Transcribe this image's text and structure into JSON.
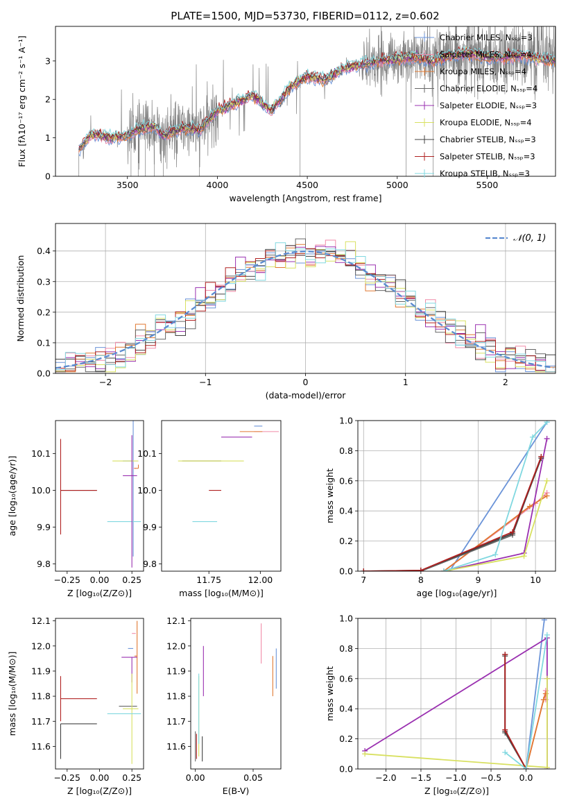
{
  "figure_title": "PLATE=1500, MJD=53730, FIBERID=0112, z=0.602",
  "series_colors": {
    "Chabrier MILES": "#6a93d8",
    "Salpeter MILES": "#f08aa8",
    "Kroupa MILES": "#e07830",
    "Chabrier ELODIE": "#666666",
    "Salpeter ELODIE": "#9a30b0",
    "Kroupa ELODIE": "#d8e060",
    "Chabrier STELIB": "#404040",
    "Salpeter STELIB": "#b02020",
    "Kroupa STELIB": "#80d8e0"
  },
  "chart_data": [
    {
      "id": "spectrum",
      "type": "line",
      "title": "PLATE=1500, MJD=53730, FIBERID=0112, z=0.602",
      "xlabel": "wavelength [Angstrom, rest frame]",
      "ylabel": "Flux [fλ10⁻¹⁷ erg cm⁻² s⁻¹ A⁻¹]",
      "xlim": [
        3100,
        5880
      ],
      "ylim": [
        0,
        3.9
      ],
      "xticks": [
        3500,
        4000,
        4500,
        5000,
        5500
      ],
      "yticks": [
        0,
        1,
        2,
        3
      ],
      "data_color": "#808080",
      "data_range": [
        3230,
        5880
      ],
      "model_anchors": {
        "x": [
          3230,
          3300,
          3400,
          3500,
          3550,
          3650,
          3700,
          3800,
          3900,
          4000,
          4100,
          4200,
          4300,
          4400,
          4500,
          4600,
          4700,
          4800,
          4900,
          5000,
          5100,
          5200,
          5300,
          5400,
          5500,
          5600,
          5700,
          5800,
          5880
        ],
        "y": [
          0.7,
          1.1,
          1.0,
          1.05,
          1.2,
          1.3,
          1.05,
          1.25,
          1.2,
          1.7,
          1.9,
          2.1,
          1.7,
          2.3,
          2.6,
          2.5,
          2.8,
          2.9,
          3.0,
          3.05,
          3.1,
          3.0,
          3.15,
          3.2,
          3.1,
          3.1,
          3.15,
          3.05,
          3.0
        ]
      },
      "legend_placement": "right",
      "legend": [
        "Chabrier MILES, Nₛₛₚ=3",
        "Salpeter MILES, Nₛₛₚ=4",
        "Kroupa MILES, Nₛₛₚ=4",
        "Chabrier ELODIE, Nₛₛₚ=4",
        "Salpeter ELODIE, Nₛₛₚ=3",
        "Kroupa ELODIE, Nₛₛₚ=4",
        "Chabrier STELIB, Nₛₛₚ=3",
        "Salpeter STELIB, Nₛₛₚ=3",
        "Kroupa STELIB, Nₛₛₚ=3"
      ],
      "grid": false
    },
    {
      "id": "residuals",
      "type": "histogram",
      "xlabel": "(data-model)/error",
      "ylabel": "Normed distribution",
      "xlim": [
        -2.5,
        2.5
      ],
      "ylim": [
        0,
        0.49
      ],
      "xticks": [
        -2,
        -1,
        0,
        1,
        2
      ],
      "yticks": [
        0.0,
        0.1,
        0.2,
        0.3,
        0.4
      ],
      "bin_width": 0.1,
      "gaussian_label": "𝒩(0, 1)",
      "gaussian_color": "#5b8bd0",
      "legend_placement": "top-right",
      "grid": true
    },
    {
      "id": "age_vs_Z",
      "type": "errorbar",
      "xlabel": "Z [log₁₀(Z/Z⊙)]",
      "ylabel": "age  [log₁₀(age/yr)]",
      "xlim": [
        -0.34,
        0.34
      ],
      "ylim": [
        9.78,
        10.19
      ],
      "xticks": [
        -0.25,
        0.0,
        0.25
      ],
      "yticks": [
        9.8,
        9.9,
        10.0,
        10.1
      ],
      "points": [
        {
          "s": "Chabrier MILES",
          "x": 0.26,
          "y": 10.08,
          "xerr": [
            0.08,
            0.0
          ],
          "yerr": [
            0.26,
            0.11
          ]
        },
        {
          "s": "Salpeter MILES",
          "x": 0.28,
          "y": 10.06,
          "xerr": [
            0.02,
            0.0
          ],
          "yerr": [
            0.0,
            0.0
          ]
        },
        {
          "s": "Kroupa MILES",
          "x": 0.3,
          "y": 10.06,
          "xerr": [
            0.03,
            0.0
          ],
          "yerr": [
            0.0,
            0.01
          ]
        },
        {
          "s": "Chabrier ELODIE",
          "x": 0.25,
          "y": 10.1,
          "xerr": [
            0.0,
            0.0
          ],
          "yerr": [
            0.0,
            0.0
          ]
        },
        {
          "s": "Salpeter ELODIE",
          "x": 0.25,
          "y": 10.04,
          "xerr": [
            0.07,
            0.04
          ],
          "yerr": [
            0.0,
            0.0
          ]
        },
        {
          "s": "Kroupa ELODIE",
          "x": 0.25,
          "y": 10.08,
          "xerr": [
            0.15,
            0.05
          ],
          "yerr": [
            0.0,
            0.0
          ]
        },
        {
          "s": "Chabrier STELIB",
          "x": -0.3,
          "y": 10.0,
          "xerr": [
            0.0,
            0.28
          ],
          "yerr": [
            0.0,
            0.0
          ]
        },
        {
          "s": "Salpeter STELIB",
          "x": -0.3,
          "y": 10.0,
          "xerr": [
            0.0,
            0.28
          ],
          "yerr": [
            0.12,
            0.14
          ]
        },
        {
          "s": "Kroupa STELIB",
          "x": 0.26,
          "y": 9.915,
          "xerr": [
            0.2,
            0.06
          ],
          "yerr": [
            0.0,
            0.0
          ]
        },
        {
          "s": "Salpeter ELODIE",
          "x": 0.25,
          "y": 10.1,
          "xerr": [
            0.0,
            0.0
          ],
          "yerr": [
            0.31,
            0.05
          ]
        }
      ]
    },
    {
      "id": "age_vs_mass",
      "type": "errorbar",
      "xlabel": "mass [log₁₀(M/M⊙)]",
      "ylabel": "",
      "xlim": [
        11.52,
        12.1
      ],
      "ylim": [
        9.78,
        10.19
      ],
      "xticks": [
        11.75,
        12.0
      ],
      "yticks": [
        9.8,
        9.9,
        10.0,
        10.1
      ],
      "points": [
        {
          "s": "Chabrier MILES",
          "x": 11.99,
          "y": 10.175,
          "xerr": [
            0.02,
            0.02
          ],
          "yerr": [
            0.0,
            0.0
          ]
        },
        {
          "s": "Salpeter MILES",
          "x": 12.05,
          "y": 10.16,
          "xerr": [
            0.08,
            0.04
          ],
          "yerr": [
            0.0,
            0.0
          ]
        },
        {
          "s": "Kroupa MILES",
          "x": 11.96,
          "y": 10.16,
          "xerr": [
            0.06,
            0.05
          ],
          "yerr": [
            0.0,
            0.0
          ]
        },
        {
          "s": "Chabrier ELODIE",
          "x": 11.76,
          "y": 10.08,
          "xerr": [
            0.14,
            0.05
          ],
          "yerr": [
            0.0,
            0.0
          ]
        },
        {
          "s": "Salpeter ELODIE",
          "x": 11.96,
          "y": 10.145,
          "xerr": [
            0.15,
            0.0
          ],
          "yerr": [
            0.0,
            0.0
          ]
        },
        {
          "s": "Kroupa ELODIE",
          "x": 11.8,
          "y": 10.08,
          "xerr": [
            0.2,
            0.12
          ],
          "yerr": [
            0.0,
            0.0
          ]
        },
        {
          "s": "Chabrier STELIB",
          "x": 11.69,
          "y": 10.0,
          "xerr": [
            0.0,
            0.0
          ],
          "yerr": [
            0.0,
            0.0
          ]
        },
        {
          "s": "Salpeter STELIB",
          "x": 11.79,
          "y": 10.0,
          "xerr": [
            0.04,
            0.02
          ],
          "yerr": [
            0.0,
            0.0
          ]
        },
        {
          "s": "Kroupa STELIB",
          "x": 11.73,
          "y": 9.915,
          "xerr": [
            0.06,
            0.06
          ],
          "yerr": [
            0.0,
            0.0
          ]
        }
      ]
    },
    {
      "id": "massweight_vs_age",
      "type": "line",
      "xlabel": "age  [log₁₀(age/yr)]",
      "ylabel": "mass weight",
      "xlim": [
        6.9,
        10.35
      ],
      "ylim": [
        0,
        1.0
      ],
      "xticks": [
        7,
        8,
        9,
        10
      ],
      "yticks": [
        0.0,
        0.2,
        0.4,
        0.6,
        0.8,
        1.0
      ],
      "grid": true,
      "series": [
        {
          "s": "Chabrier MILES",
          "x": [
            8.5,
            10.2
          ],
          "y": [
            0.0,
            0.99
          ]
        },
        {
          "s": "Salpeter MILES",
          "x": [
            8.4,
            10.0,
            10.2
          ],
          "y": [
            0.0,
            0.45,
            0.52
          ]
        },
        {
          "s": "Kroupa MILES",
          "x": [
            8.4,
            9.9,
            10.2
          ],
          "y": [
            0.0,
            0.43,
            0.5
          ]
        },
        {
          "s": "Chabrier ELODIE",
          "x": [
            8.0,
            9.6,
            10.1
          ],
          "y": [
            0.0,
            0.24,
            0.76
          ]
        },
        {
          "s": "Salpeter ELODIE",
          "x": [
            8.4,
            9.8,
            10.2
          ],
          "y": [
            0.0,
            0.12,
            0.88
          ]
        },
        {
          "s": "Kroupa ELODIE",
          "x": [
            8.4,
            9.8,
            10.2
          ],
          "y": [
            0.0,
            0.1,
            0.6
          ]
        },
        {
          "s": "Chabrier STELIB",
          "x": [
            7.0,
            8.0,
            9.6,
            10.1
          ],
          "y": [
            0.0,
            0.005,
            0.25,
            0.75
          ]
        },
        {
          "s": "Salpeter STELIB",
          "x": [
            7.0,
            8.0,
            9.6,
            10.1
          ],
          "y": [
            0.0,
            0.005,
            0.26,
            0.76
          ]
        },
        {
          "s": "Kroupa STELIB",
          "x": [
            8.4,
            9.3,
            9.95,
            10.2
          ],
          "y": [
            0.0,
            0.11,
            0.89,
            0.99
          ]
        }
      ]
    },
    {
      "id": "mass_vs_Z",
      "type": "errorbar",
      "xlabel": "Z [log₁₀(Z/Z⊙)]",
      "ylabel": "mass [log₁₀(M/M⊙)]",
      "xlim": [
        -0.34,
        0.34
      ],
      "ylim": [
        11.51,
        12.11
      ],
      "xticks": [
        -0.25,
        0.0,
        0.25
      ],
      "yticks": [
        11.6,
        11.7,
        11.8,
        11.9,
        12.0,
        12.1
      ],
      "points": [
        {
          "s": "Chabrier MILES",
          "x": 0.26,
          "y": 11.99,
          "xerr": [
            0.04,
            0.0
          ],
          "yerr": [
            0.0,
            0.0
          ]
        },
        {
          "s": "Salpeter MILES",
          "x": 0.28,
          "y": 12.05,
          "xerr": [
            0.03,
            0.0
          ],
          "yerr": [
            0.0,
            0.0
          ]
        },
        {
          "s": "Kroupa MILES",
          "x": 0.29,
          "y": 11.96,
          "xerr": [
            0.02,
            0.0
          ],
          "yerr": [
            0.15,
            0.14
          ]
        },
        {
          "s": "Chabrier ELODIE",
          "x": 0.25,
          "y": 11.76,
          "xerr": [
            0.1,
            0.04
          ],
          "yerr": [
            0.0,
            0.0
          ]
        },
        {
          "s": "Salpeter ELODIE",
          "x": 0.25,
          "y": 11.955,
          "xerr": [
            0.08,
            0.04
          ],
          "yerr": [
            0.1,
            0.0
          ]
        },
        {
          "s": "Kroupa ELODIE",
          "x": 0.25,
          "y": 11.75,
          "xerr": [
            0.07,
            0.05
          ],
          "yerr": [
            0.22,
            0.14
          ]
        },
        {
          "s": "Chabrier STELIB",
          "x": -0.3,
          "y": 11.69,
          "xerr": [
            0.0,
            0.28
          ],
          "yerr": [
            0.14,
            0.0
          ]
        },
        {
          "s": "Salpeter STELIB",
          "x": -0.3,
          "y": 11.79,
          "xerr": [
            0.0,
            0.28
          ],
          "yerr": [
            0.09,
            0.09
          ]
        },
        {
          "s": "Kroupa STELIB",
          "x": 0.26,
          "y": 11.73,
          "xerr": [
            0.2,
            0.06
          ],
          "yerr": [
            0.0,
            0.0
          ]
        }
      ]
    },
    {
      "id": "mass_vs_EBV",
      "type": "errorbar",
      "xlabel": "E(B-V)",
      "ylabel": "",
      "xlim": [
        -0.004,
        0.074
      ],
      "ylim": [
        11.51,
        12.11
      ],
      "xticks": [
        0.0,
        0.05
      ],
      "yticks": [
        11.6,
        11.7,
        11.8,
        11.9,
        12.0,
        12.1
      ],
      "points": [
        {
          "s": "Chabrier MILES",
          "x": 0.07,
          "y": 11.91,
          "xerr": [
            0.0,
            0.0
          ],
          "yerr": [
            0.08,
            0.08
          ]
        },
        {
          "s": "Salpeter MILES",
          "x": 0.057,
          "y": 12.01,
          "xerr": [
            0.0,
            0.0
          ],
          "yerr": [
            0.08,
            0.08
          ]
        },
        {
          "s": "Kroupa MILES",
          "x": 0.067,
          "y": 11.88,
          "xerr": [
            0.0,
            0.0
          ],
          "yerr": [
            0.08,
            0.08
          ]
        },
        {
          "s": "Chabrier ELODIE",
          "x": 0.0,
          "y": 11.6,
          "xerr": [
            0.0,
            0.0
          ],
          "yerr": [
            0.06,
            0.06
          ]
        },
        {
          "s": "Salpeter ELODIE",
          "x": 0.007,
          "y": 11.9,
          "xerr": [
            0.0,
            0.0
          ],
          "yerr": [
            0.1,
            0.1
          ]
        },
        {
          "s": "Kroupa ELODIE",
          "x": 0.003,
          "y": 11.72,
          "xerr": [
            0.0,
            0.0
          ],
          "yerr": [
            0.16,
            0.16
          ]
        },
        {
          "s": "Chabrier STELIB",
          "x": 0.006,
          "y": 11.59,
          "xerr": [
            0.0,
            0.0
          ],
          "yerr": [
            0.05,
            0.05
          ]
        },
        {
          "s": "Salpeter STELIB",
          "x": 0.001,
          "y": 11.6,
          "xerr": [
            0.0,
            0.0
          ],
          "yerr": [
            0.05,
            0.05
          ]
        },
        {
          "s": "Kroupa STELIB",
          "x": 0.003,
          "y": 11.75,
          "xerr": [
            0.0,
            0.0
          ],
          "yerr": [
            0.14,
            0.14
          ]
        }
      ]
    },
    {
      "id": "massweight_vs_Z",
      "type": "line",
      "xlabel": "Z [log₁₀(Z/Z⊙)]",
      "ylabel": "mass weight",
      "xlim": [
        -2.4,
        0.42
      ],
      "ylim": [
        0,
        1.0
      ],
      "xticks": [
        -2.0,
        -1.5,
        -1.0,
        -0.5,
        0.0
      ],
      "yticks": [
        0.0,
        0.2,
        0.4,
        0.6,
        0.8,
        1.0
      ],
      "grid": true,
      "series": [
        {
          "s": "Chabrier MILES",
          "x": [
            0.0,
            0.26
          ],
          "y": [
            0.0,
            0.99
          ]
        },
        {
          "s": "Salpeter MILES",
          "x": [
            0.0,
            0.28,
            0.28
          ],
          "y": [
            0.0,
            0.52,
            0.46
          ]
        },
        {
          "s": "Kroupa MILES",
          "x": [
            0.0,
            0.25,
            0.28
          ],
          "y": [
            0.0,
            0.46,
            0.5
          ]
        },
        {
          "s": "Chabrier ELODIE",
          "x": [
            -0.3,
            -0.3,
            0.0
          ],
          "y": [
            0.76,
            0.24,
            0.0
          ]
        },
        {
          "s": "Salpeter ELODIE",
          "x": [
            -2.3,
            0.3,
            0.3,
            0.3
          ],
          "y": [
            0.12,
            0.87,
            0.0,
            0.6
          ]
        },
        {
          "s": "Kroupa ELODIE",
          "x": [
            -2.3,
            0.3,
            0.3
          ],
          "y": [
            0.1,
            0.01,
            0.6
          ]
        },
        {
          "s": "Chabrier STELIB",
          "x": [
            -0.3,
            -0.3,
            0.0
          ],
          "y": [
            0.75,
            0.25,
            0.0
          ]
        },
        {
          "s": "Salpeter STELIB",
          "x": [
            -0.3,
            -0.3,
            0.0
          ],
          "y": [
            0.76,
            0.26,
            0.0
          ]
        },
        {
          "s": "Kroupa STELIB",
          "x": [
            -0.3,
            0.0,
            0.3
          ],
          "y": [
            0.11,
            0.0,
            0.89
          ]
        }
      ]
    }
  ]
}
